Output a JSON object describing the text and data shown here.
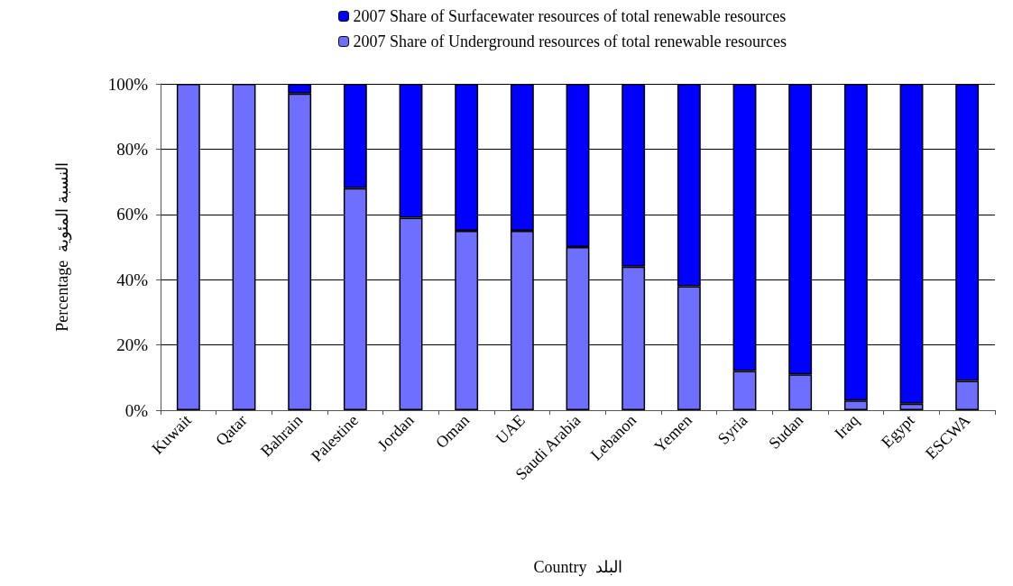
{
  "chart_data": {
    "type": "bar",
    "stacked": true,
    "xlabel": "Country  البلد",
    "ylabel": "Percentage  النسبة المئوية",
    "categories": [
      "Kuwait",
      "Qatar",
      "Bahrain",
      "Palestine",
      "Jordan",
      "Oman",
      "UAE",
      "Saudi Arabia",
      "Lebanon",
      "Yemen",
      "Syria",
      "Sudan",
      "Iraq",
      "Egypt",
      "ESCWA"
    ],
    "series": [
      {
        "name": "2007 Share of Underground resources of total renewable resources",
        "color": "#6f6fff",
        "values": [
          100,
          100,
          97,
          68,
          59,
          55,
          55,
          50,
          44,
          38,
          12,
          11,
          3,
          2,
          9
        ]
      },
      {
        "name": "2007 Share of Surfacewater resources of total renewable resources",
        "color": "#0000ff",
        "values": [
          0,
          0,
          3,
          32,
          41,
          45,
          45,
          50,
          56,
          62,
          88,
          89,
          97,
          98,
          91
        ]
      }
    ],
    "ylim": [
      0,
      100
    ],
    "yticks": [
      {
        "value": 0,
        "label": "0%"
      },
      {
        "value": 20,
        "label": "20%"
      },
      {
        "value": 40,
        "label": "40%"
      },
      {
        "value": 60,
        "label": "60%"
      },
      {
        "value": 80,
        "label": "80%"
      },
      {
        "value": 100,
        "label": "100%"
      }
    ],
    "grid": "y",
    "legend": "top"
  }
}
